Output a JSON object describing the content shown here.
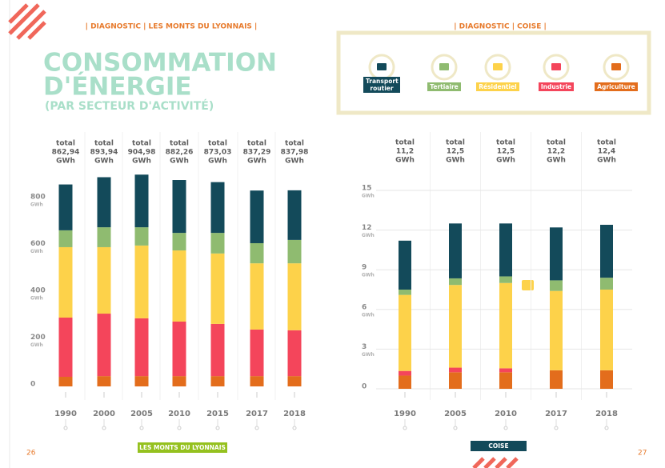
{
  "header_left": "| DIAGNOSTIC | LES MONTS DU LYONNAIS |",
  "header_right": "| DIAGNOSTIC | COISE |",
  "title_line1": "CONSOMMATION",
  "title_line2": "D'ÉNERGIE",
  "subtitle": "(PAR SECTEUR D'ACTIVITÉ)",
  "footer_left": "LES MONTS DU LYONNAIS",
  "footer_right": "COISE",
  "page_left": 26,
  "page_right": 27,
  "chart_data": [
    {
      "type": "stacked-bar",
      "categories": [
        "1990",
        "2000",
        "2005",
        "2010",
        "2015",
        "2017",
        "2018"
      ],
      "total_label": "total",
      "total_unit": "GWh",
      "totals": [
        862.94,
        893.94,
        904.98,
        882.26,
        873.03,
        837.29,
        837.98
      ],
      "total_value_labels": [
        "862,94",
        "893,94",
        "904,98",
        "882,26",
        "873,03",
        "837,29",
        "837,98"
      ],
      "y_unit": "GWh",
      "ylim": [
        0,
        900
      ],
      "yticks": [
        0,
        200,
        400,
        600,
        800
      ],
      "grid": false,
      "series": [
        {
          "color": "#e36d1c",
          "values": [
            41,
            44,
            44,
            44,
            44,
            44,
            44
          ]
        },
        {
          "color": "#f4455b",
          "values": [
            253,
            267,
            247,
            233,
            223,
            199,
            196
          ]
        },
        {
          "color": "#fdd24a",
          "values": [
            301,
            284,
            311,
            304,
            301,
            283,
            286
          ]
        },
        {
          "color": "#8fbb70",
          "values": [
            72,
            85,
            78,
            75,
            88,
            86,
            100
          ]
        },
        {
          "color": "#134a5a",
          "values": [
            196,
            214,
            225,
            226,
            217,
            225,
            212
          ]
        }
      ]
    },
    {
      "type": "stacked-bar",
      "categories": [
        "1990",
        "2005",
        "2010",
        "2017",
        "2018"
      ],
      "total_label": "total",
      "total_unit": "GWh",
      "totals": [
        11.2,
        12.5,
        12.5,
        12.2,
        12.4
      ],
      "total_value_labels": [
        "11,2",
        "12,5",
        "12,5",
        "12,2",
        "12,4"
      ],
      "y_unit": "GWh",
      "ylim": [
        0,
        15
      ],
      "yticks": [
        0,
        3,
        6,
        9,
        12,
        15
      ],
      "grid": true,
      "series": [
        {
          "name": "Agriculture",
          "color": "#e36d1c",
          "values": [
            1.0,
            1.25,
            1.25,
            1.4,
            1.4
          ]
        },
        {
          "name": "Industrie",
          "color": "#f4455b",
          "values": [
            0.35,
            0.35,
            0.3,
            0,
            0
          ]
        },
        {
          "name": "Résidentiel",
          "color": "#fdd24a",
          "values": [
            5.75,
            6.25,
            6.45,
            6.0,
            6.1
          ]
        },
        {
          "name": "Tertiaire",
          "color": "#8fbb70",
          "values": [
            0.4,
            0.5,
            0.5,
            0.8,
            0.9
          ]
        },
        {
          "name": "Transport routier",
          "color": "#134a5a",
          "values": [
            3.7,
            4.15,
            4.0,
            4.0,
            4.0
          ]
        }
      ]
    }
  ]
}
